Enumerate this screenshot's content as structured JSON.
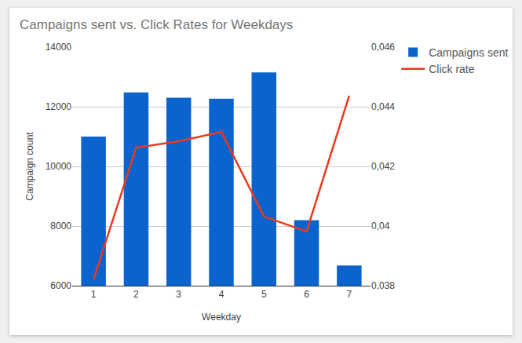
{
  "chart_data": {
    "type": "bar",
    "title": "Campaigns sent vs. Click Rates for Weekdays",
    "x_label": "Weekday",
    "y_label": "Campaign count",
    "categories": [
      "1",
      "2",
      "3",
      "4",
      "5",
      "6",
      "7"
    ],
    "series": [
      {
        "name": "Campaigns sent",
        "type": "bar",
        "color": "#0b63ce",
        "values": [
          11000,
          12480,
          12300,
          12270,
          13150,
          8200,
          6680
        ]
      },
      {
        "name": "Click rate",
        "type": "line",
        "axis": "y2",
        "color": "#ec3a1c",
        "values": [
          0.0382,
          0.04263,
          0.04284,
          0.04316,
          0.04032,
          0.03982,
          0.04437
        ]
      }
    ],
    "ylim": [
      6000,
      14000
    ],
    "yticks": [
      6000,
      8000,
      10000,
      12000,
      14000
    ],
    "y2lim": [
      0.038,
      0.046
    ],
    "y2ticks": [
      {
        "value": 0.038,
        "label": "0,038"
      },
      {
        "value": 0.04,
        "label": "0,04"
      },
      {
        "value": 0.042,
        "label": "0,042"
      },
      {
        "value": 0.044,
        "label": "0,044"
      },
      {
        "value": 0.046,
        "label": "0,046"
      }
    ],
    "grid": true,
    "legend": "right"
  }
}
